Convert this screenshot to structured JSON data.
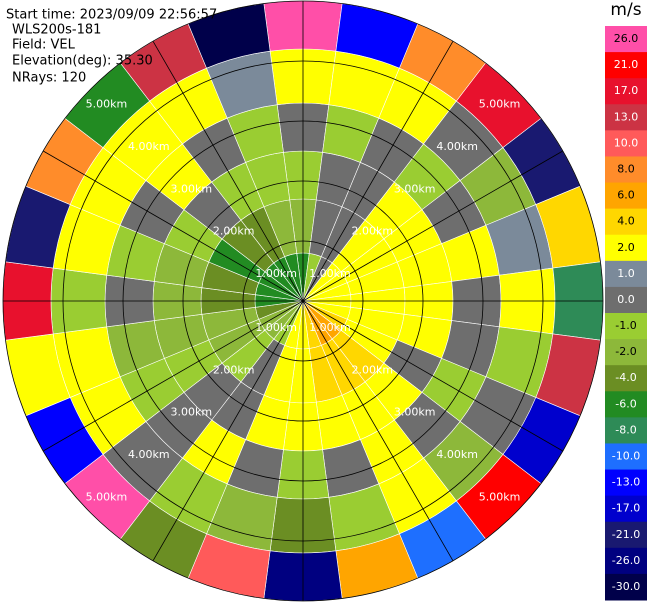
{
  "chart_data": {
    "type": "ppi",
    "header": [
      "Start time: 2023/09/09 22:56:57",
      "WLS200s-181",
      "Field: VEL",
      "Elevation(deg): 35.30",
      "NRays: 120"
    ],
    "colorbar": {
      "title": "m/s",
      "ticks": [
        26.0,
        21.0,
        17.0,
        13.0,
        10.0,
        8.0,
        6.0,
        4.0,
        2.0,
        1.0,
        0.0,
        -1.0,
        -2.0,
        -4.0,
        -6.0,
        -8.0,
        -10.0,
        -13.0,
        -17.0,
        -21.0,
        -26.0,
        -30.0
      ],
      "tick_labels": [
        "26.0",
        "21.0",
        "17.0",
        "13.0",
        "10.0",
        "8.0",
        "6.0",
        "4.0",
        "2.0",
        "1.0",
        "0.0",
        "-1.0",
        "-2.0",
        "-4.0",
        "-6.0",
        "-8.0",
        "-10.0",
        "-13.0",
        "-17.0",
        "-21.0",
        "-26.0",
        "-30.0"
      ],
      "colors": [
        "#ff4fa8",
        "#ff0000",
        "#e8112d",
        "#cc3344",
        "#ff5a5a",
        "#ff8c2a",
        "#ffa500",
        "#ffd700",
        "#ffff00",
        "#7b8a9a",
        "#6e6e6e",
        "#9acd32",
        "#8db83a",
        "#6b8e23",
        "#228b22",
        "#2e8b57",
        "#1e6fff",
        "#0000ff",
        "#0000cd",
        "#191970",
        "#000080",
        "#00004a"
      ]
    },
    "rlim": [
      0,
      5
    ],
    "range_rings": [
      {
        "value": 1,
        "label": "1.00km"
      },
      {
        "value": 2,
        "label": "2.00km"
      },
      {
        "value": 3,
        "label": "3.00km"
      },
      {
        "value": 4,
        "label": "4.00km"
      },
      {
        "value": 5,
        "label": "5.00km"
      }
    ],
    "azimuths": [
      0,
      15,
      30,
      45,
      60,
      75,
      90,
      105,
      120,
      135,
      150,
      165,
      180,
      195,
      210,
      225,
      240,
      255,
      270,
      285,
      300,
      315,
      330,
      345
    ],
    "range_edges": [
      0,
      0.8,
      1.7,
      2.5,
      3.3,
      4.2,
      5.0
    ],
    "velocity": [
      [
        -6,
        -1,
        0,
        2,
        2,
        2,
        2,
        2,
        4,
        6,
        6,
        4,
        2,
        2,
        -1,
        -2,
        -2,
        -4,
        -6,
        -6,
        -6,
        -6,
        -6,
        -6
      ],
      [
        -2,
        0,
        0,
        2,
        2,
        2,
        2,
        2,
        2,
        4,
        4,
        4,
        2,
        2,
        0,
        -1,
        -2,
        -2,
        -4,
        -4,
        -6,
        -4,
        -4,
        -2
      ],
      [
        -1,
        0,
        0,
        2,
        2,
        2,
        2,
        2,
        0,
        2,
        2,
        2,
        2,
        2,
        0,
        0,
        -1,
        -2,
        -2,
        -2,
        -1,
        0,
        -1,
        -1
      ],
      [
        0,
        -1,
        0,
        -1,
        0,
        2,
        0,
        0,
        -1,
        0,
        2,
        0,
        -1,
        0,
        2,
        0,
        -1,
        -2,
        0,
        -1,
        0,
        2,
        0,
        -1
      ],
      [
        2,
        2,
        2,
        0,
        -2,
        1,
        2,
        -1,
        0,
        -2,
        2,
        -1,
        -4,
        -2,
        -1,
        0,
        2,
        2,
        -1,
        2,
        2,
        2,
        2,
        1
      ],
      [
        26,
        -13,
        8,
        17,
        -21,
        4,
        -8,
        13,
        -17,
        21,
        -10,
        6,
        -26,
        10,
        -4,
        26,
        -13,
        2,
        17,
        -21,
        8,
        -6,
        13,
        -30
      ]
    ]
  }
}
